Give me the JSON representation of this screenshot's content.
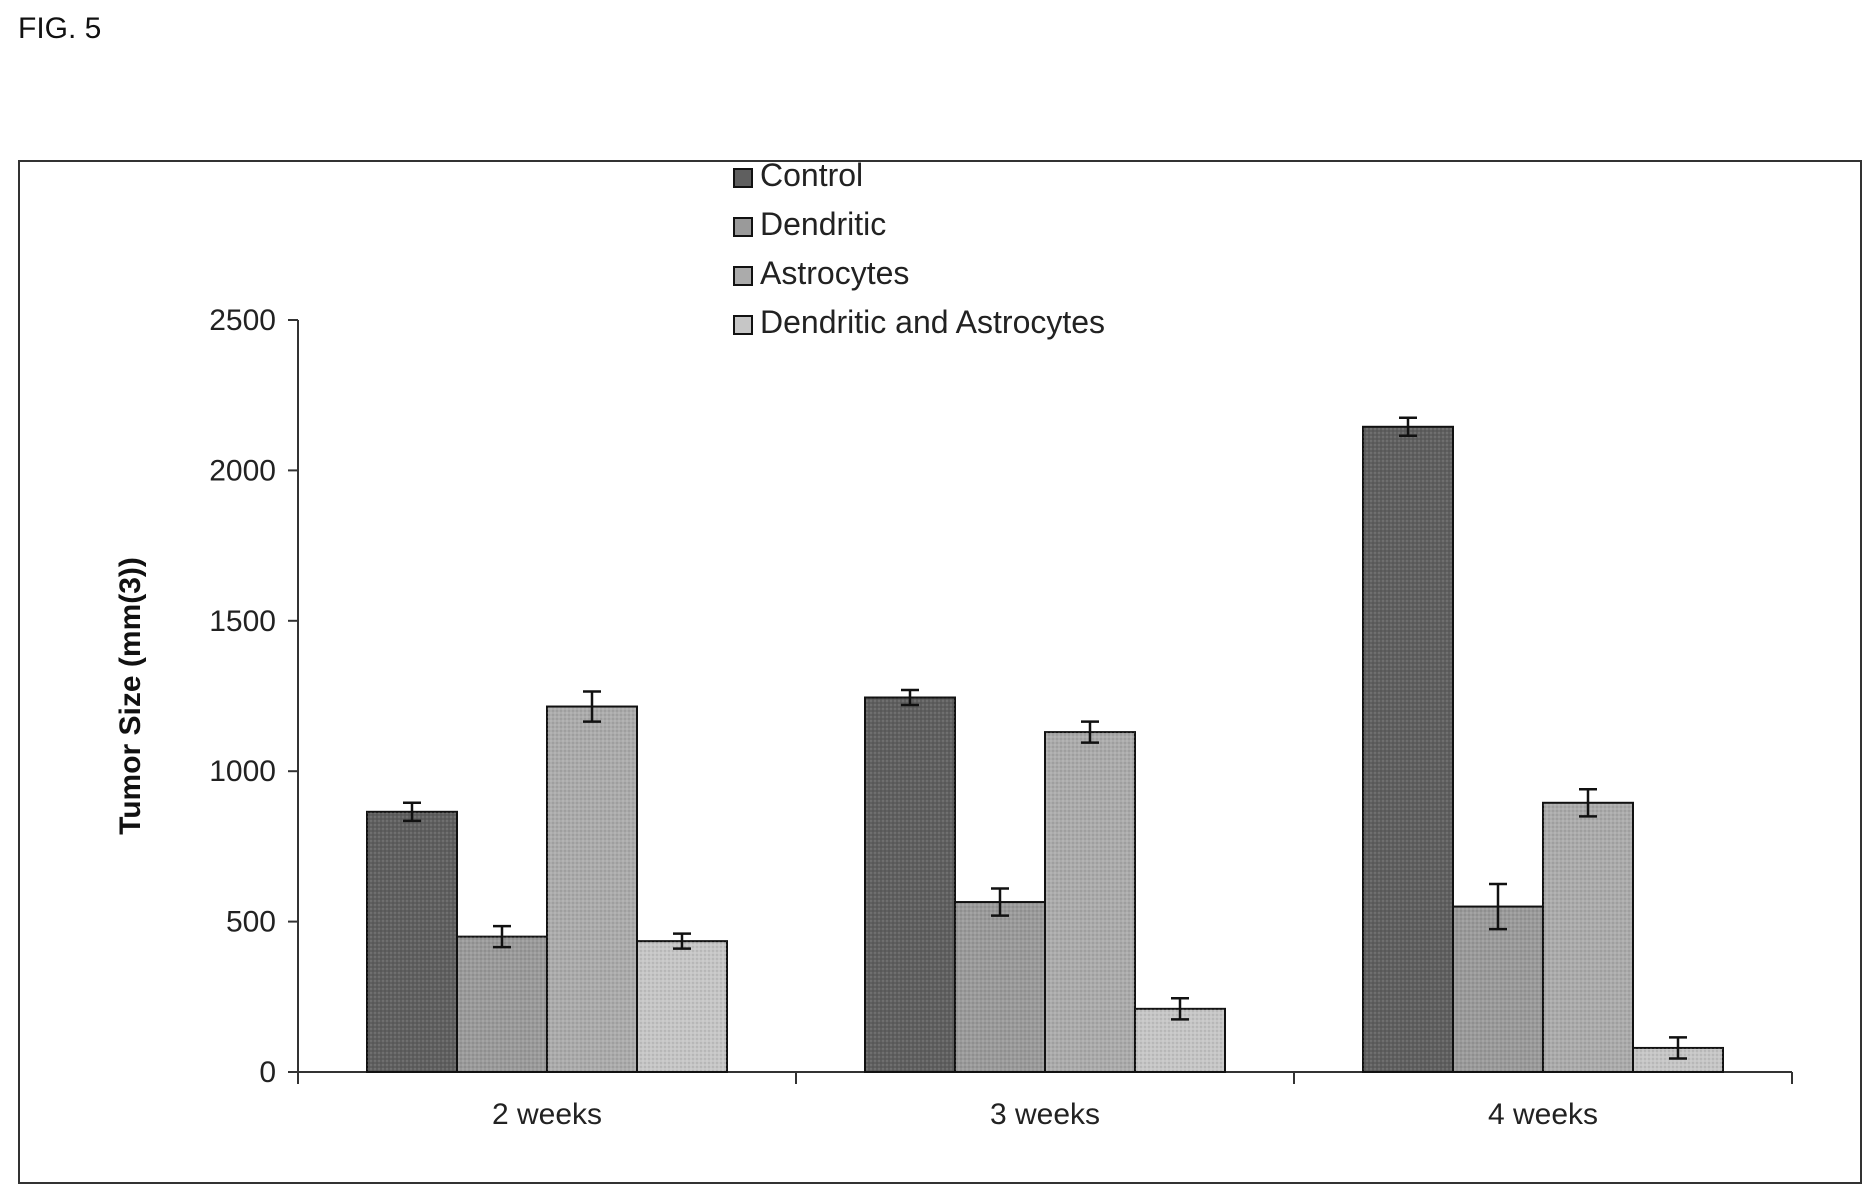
{
  "figure_label": "FIG. 5",
  "chart_data": {
    "type": "bar",
    "title": "",
    "xlabel": "",
    "ylabel": "Tumor Size (mm(3))",
    "ylim": [
      0,
      2500
    ],
    "yticks": [
      0,
      500,
      1000,
      1500,
      2000,
      2500
    ],
    "categories": [
      "2 weeks",
      "3 weeks",
      "4 weeks"
    ],
    "legend_position": "top-center",
    "grid": false,
    "series": [
      {
        "name": "Control",
        "values": [
          865,
          1245,
          2145
        ],
        "errors": [
          30,
          25,
          30
        ],
        "color": "#5f5f5f"
      },
      {
        "name": "Dendritic",
        "values": [
          450,
          565,
          550
        ],
        "errors": [
          35,
          45,
          75
        ],
        "color": "#9a9a9a"
      },
      {
        "name": "Astrocytes",
        "values": [
          1215,
          1130,
          895
        ],
        "errors": [
          50,
          35,
          45
        ],
        "color": "#ababab"
      },
      {
        "name": "Dendritic and Astrocytes",
        "values": [
          435,
          210,
          80
        ],
        "errors": [
          25,
          35,
          35
        ],
        "color": "#c6c6c6"
      }
    ]
  }
}
